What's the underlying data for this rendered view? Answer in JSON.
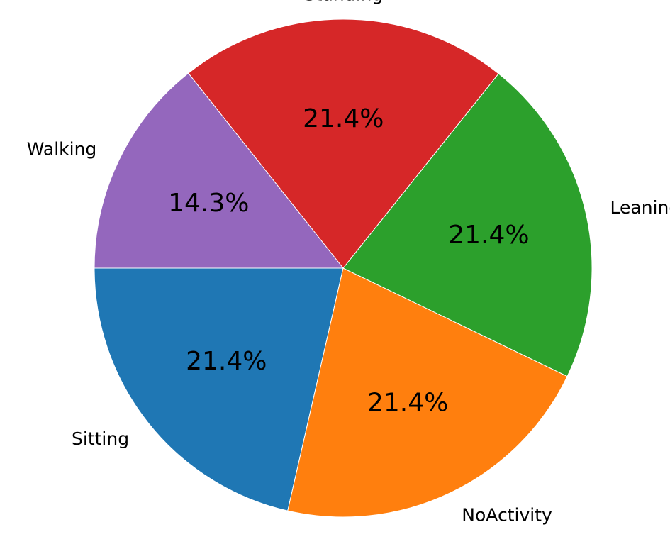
{
  "chart_data": {
    "type": "pie",
    "title": "",
    "start_angle_deg": 180,
    "direction": "counterclockwise",
    "slices": [
      {
        "label": "Sitting",
        "value": 21.4,
        "pct_label": "21.4%",
        "color": "#1f77b4"
      },
      {
        "label": "NoActivity",
        "value": 21.4,
        "pct_label": "21.4%",
        "color": "#ff7f0e"
      },
      {
        "label": "Leaning",
        "value": 21.4,
        "pct_label": "21.4%",
        "color": "#2ca02c"
      },
      {
        "label": "Standing",
        "value": 21.4,
        "pct_label": "21.4%",
        "color": "#d62728"
      },
      {
        "label": "Walking",
        "value": 14.3,
        "pct_label": "14.3%",
        "color": "#9467bd"
      }
    ]
  }
}
